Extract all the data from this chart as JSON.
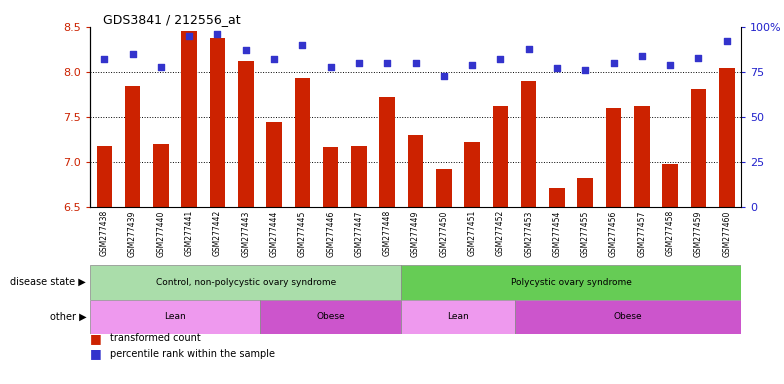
{
  "title": "GDS3841 / 212556_at",
  "samples": [
    "GSM277438",
    "GSM277439",
    "GSM277440",
    "GSM277441",
    "GSM277442",
    "GSM277443",
    "GSM277444",
    "GSM277445",
    "GSM277446",
    "GSM277447",
    "GSM277448",
    "GSM277449",
    "GSM277450",
    "GSM277451",
    "GSM277452",
    "GSM277453",
    "GSM277454",
    "GSM277455",
    "GSM277456",
    "GSM277457",
    "GSM277458",
    "GSM277459",
    "GSM277460"
  ],
  "transformed_count": [
    7.18,
    7.85,
    7.2,
    8.45,
    8.38,
    8.12,
    7.45,
    7.93,
    7.17,
    7.18,
    7.72,
    7.3,
    6.93,
    7.22,
    7.62,
    7.9,
    6.72,
    6.82,
    7.6,
    7.62,
    6.98,
    7.81,
    8.04
  ],
  "percentile_rank": [
    82,
    85,
    78,
    95,
    96,
    87,
    82,
    90,
    78,
    80,
    80,
    80,
    73,
    79,
    82,
    88,
    77,
    76,
    80,
    84,
    79,
    83,
    92
  ],
  "ylim_left": [
    6.5,
    8.5
  ],
  "ylim_right": [
    0,
    100
  ],
  "yticks_left": [
    6.5,
    7.0,
    7.5,
    8.0,
    8.5
  ],
  "yticks_right": [
    0,
    25,
    50,
    75,
    100
  ],
  "ytick_labels_right": [
    "0",
    "25",
    "50",
    "75",
    "100%"
  ],
  "bar_color": "#cc2200",
  "dot_color": "#3333cc",
  "disease_state_groups": [
    {
      "label": "Control, non-polycystic ovary syndrome",
      "start": 0,
      "end": 10,
      "color": "#aaddaa"
    },
    {
      "label": "Polycystic ovary syndrome",
      "start": 11,
      "end": 22,
      "color": "#66cc55"
    }
  ],
  "other_groups": [
    {
      "label": "Lean",
      "start": 0,
      "end": 5,
      "color": "#ee99ee"
    },
    {
      "label": "Obese",
      "start": 6,
      "end": 10,
      "color": "#cc55cc"
    },
    {
      "label": "Lean",
      "start": 11,
      "end": 14,
      "color": "#ee99ee"
    },
    {
      "label": "Obese",
      "start": 15,
      "end": 22,
      "color": "#cc55cc"
    }
  ],
  "disease_state_label": "disease state",
  "other_label": "other",
  "legend_items": [
    "transformed count",
    "percentile rank within the sample"
  ],
  "legend_colors": [
    "#cc2200",
    "#3333cc"
  ]
}
